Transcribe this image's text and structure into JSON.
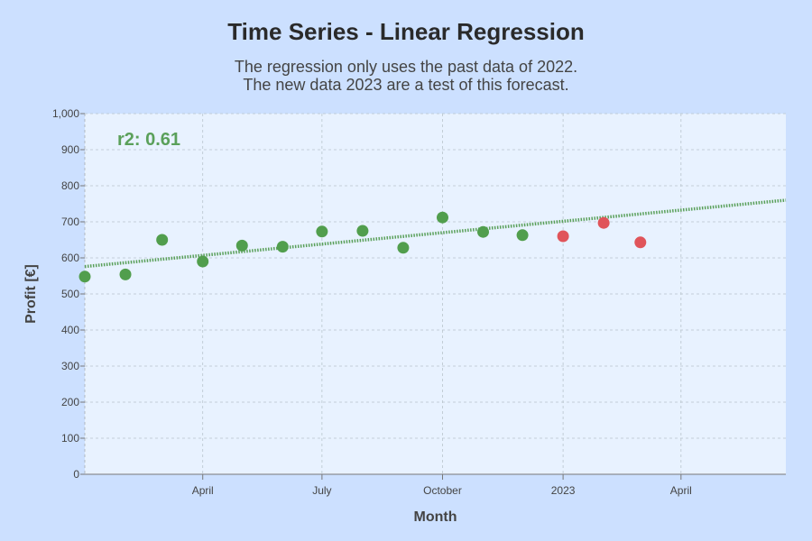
{
  "title": "Time Series - Linear Regression",
  "subtitle": {
    "line1": "The regression only uses the past data of 2022.",
    "line2": "The new data 2023 are a test of this forecast."
  },
  "colors": {
    "background": "#cce0ff",
    "plot_background": "#e8f2ff",
    "past_points": "#519e4d",
    "test_points": "#e0545a",
    "regression_line": "#5aa05a",
    "grid": "#b8c4cc"
  },
  "chart_data": {
    "type": "scatter",
    "title": "Time Series - Linear Regression",
    "xlabel": "Month",
    "ylabel": "Profit [€]",
    "x_type": "date",
    "xlim": [
      "2022-01-01",
      "2023-06-20"
    ],
    "ylim": [
      0,
      1000
    ],
    "y_ticks": [
      0,
      100,
      200,
      300,
      400,
      500,
      600,
      700,
      800,
      900,
      1000
    ],
    "y_tick_labels": [
      "0",
      "100",
      "200",
      "300",
      "400",
      "500",
      "600",
      "700",
      "800",
      "900",
      "1,000"
    ],
    "x_ticks": [
      "2022-04-01",
      "2022-07-01",
      "2022-10-01",
      "2023-01-01",
      "2023-04-01"
    ],
    "x_tick_labels": [
      "April",
      "July",
      "October",
      "2023",
      "April"
    ],
    "grid": true,
    "series": [
      {
        "x": [
          "2022-01-01",
          "2022-02-01",
          "2022-03-01",
          "2022-04-01",
          "2022-05-01",
          "2022-06-01",
          "2022-07-01",
          "2022-08-01",
          "2022-09-01",
          "2022-10-01",
          "2022-11-01",
          "2022-12-01"
        ],
        "y": [
          548,
          554,
          650,
          590,
          634,
          631,
          673,
          675,
          628,
          712,
          672,
          663
        ],
        "color": "#519e4d"
      },
      {
        "x": [
          "2023-01-01",
          "2023-02-01",
          "2023-03-01"
        ],
        "y": [
          660,
          697,
          643
        ],
        "color": "#e0545a"
      }
    ],
    "regression_line": {
      "x": [
        "2022-01-01",
        "2023-06-20"
      ],
      "y": [
        576,
        760
      ],
      "style": "dotted",
      "color": "#5aa05a"
    },
    "annotation": "r2: 0.61"
  }
}
